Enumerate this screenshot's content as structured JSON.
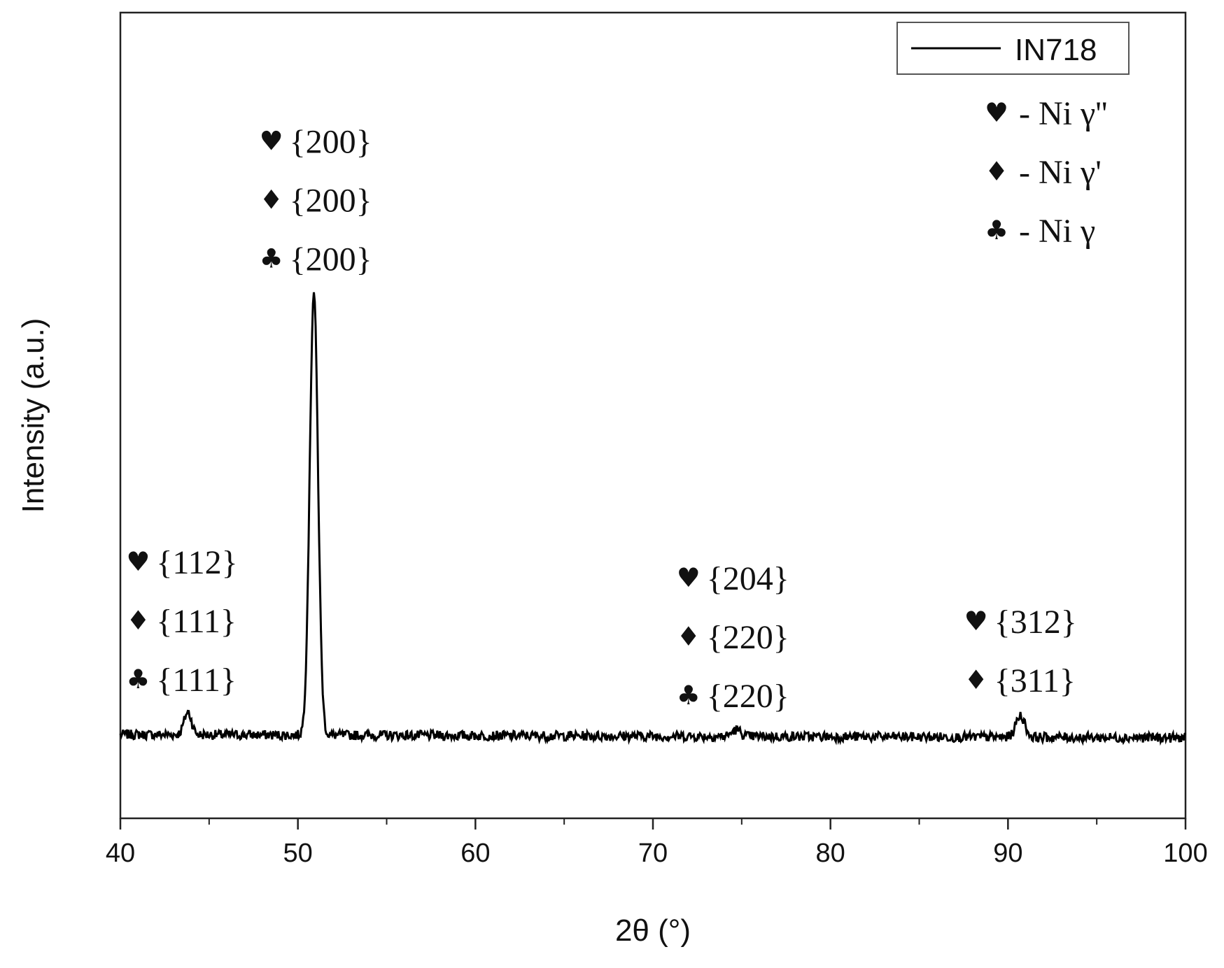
{
  "chart_data": {
    "type": "line",
    "xlabel": "2θ (°)",
    "ylabel": "Intensity (a.u.)",
    "xlim": [
      40,
      100
    ],
    "x_ticks": [
      40,
      50,
      60,
      70,
      80,
      90,
      100
    ],
    "x_minor_step": 5,
    "y_ticks_shown": false,
    "ylim_relative": [
      0,
      1
    ],
    "grid": false,
    "legend_position": "top-right",
    "series": [
      {
        "name": "IN718",
        "color": "#000000",
        "baseline_intensity": 0.104,
        "noise_amplitude": 0.006,
        "peaks": [
          {
            "x": 43.8,
            "height": 0.028,
            "fwhm": 0.5
          },
          {
            "x": 50.9,
            "height": 0.55,
            "fwhm": 0.55
          },
          {
            "x": 74.7,
            "height": 0.008,
            "fwhm": 0.6
          },
          {
            "x": 90.7,
            "height": 0.027,
            "fwhm": 0.6
          }
        ]
      }
    ],
    "phase_key": [
      {
        "symbol": "♥",
        "label": "- Ni γ''"
      },
      {
        "symbol": "♦",
        "label": "- Ni γ'"
      },
      {
        "symbol": "♣",
        "label": "- Ni γ"
      }
    ],
    "annotations": [
      {
        "x": 41.0,
        "lines": [
          {
            "symbol": "♥",
            "text": "{112}"
          },
          {
            "symbol": "♦",
            "text": "{111}"
          },
          {
            "symbol": "♣",
            "text": "{111}"
          }
        ]
      },
      {
        "x": 48.5,
        "lines": [
          {
            "symbol": "♥",
            "text": "{200}"
          },
          {
            "symbol": "♦",
            "text": "{200}"
          },
          {
            "symbol": "♣",
            "text": "{200}"
          }
        ]
      },
      {
        "x": 72.0,
        "lines": [
          {
            "symbol": "♥",
            "text": "{204}"
          },
          {
            "symbol": "♦",
            "text": "{220}"
          },
          {
            "symbol": "♣",
            "text": "{220}"
          }
        ]
      },
      {
        "x": 88.2,
        "lines": [
          {
            "symbol": "♥",
            "text": "{312}"
          },
          {
            "symbol": "♦",
            "text": "{311}"
          }
        ]
      }
    ]
  }
}
